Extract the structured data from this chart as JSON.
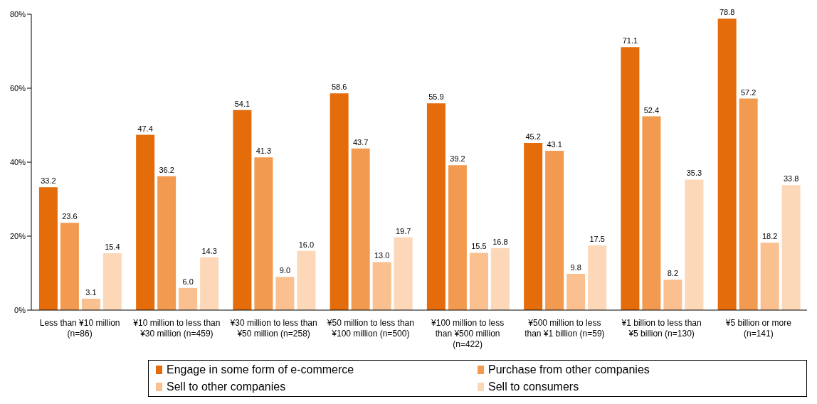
{
  "chart_data": {
    "type": "bar",
    "categories": [
      "Less than ¥10 million (n=86)",
      "¥10 million to less than ¥30 million (n=459)",
      "¥30 million to less than ¥50 million (n=258)",
      "¥50 million to less than ¥100 million (n=500)",
      "¥100 million to less than ¥500 million (n=422)",
      "¥500 million to less than ¥1 billion (n=59)",
      "¥1 billion to less than ¥5 billion (n=130)",
      "¥5 billion or more (n=141)"
    ],
    "series": [
      {
        "name": "Engage in some form of e-commerce",
        "color": "#e46c0a",
        "values": [
          33.2,
          47.4,
          54.1,
          58.6,
          55.9,
          45.2,
          71.1,
          78.8
        ],
        "value_labels": [
          "33.2",
          "47.4",
          "54.1",
          "58.6",
          "55.9",
          "45.2",
          "71.1",
          "78.8"
        ]
      },
      {
        "name": "Purchase from other companies",
        "color": "#f29a4f",
        "values": [
          23.6,
          36.2,
          41.3,
          43.7,
          39.2,
          43.1,
          52.4,
          57.2
        ],
        "value_labels": [
          "23.6",
          "36.2",
          "41.3",
          "43.7",
          "39.2",
          "43.1",
          "52.4",
          "57.2"
        ]
      },
      {
        "name": "Sell to other companies",
        "color": "#fac090",
        "values": [
          3.1,
          6.0,
          9.0,
          13.0,
          15.5,
          9.8,
          8.2,
          18.2
        ],
        "value_labels": [
          "3.1",
          "6.0",
          "9.0",
          "13.0",
          "15.5",
          "9.8",
          "8.2",
          "18.2"
        ]
      },
      {
        "name": "Sell to consumers",
        "color": "#fcd8b8",
        "values": [
          15.4,
          14.3,
          16.0,
          19.7,
          16.8,
          17.5,
          35.3,
          33.8
        ],
        "value_labels": [
          "15.4",
          "14.3",
          "16.0",
          "19.7",
          "16.8",
          "17.5",
          "35.3",
          "33.8"
        ]
      }
    ],
    "ylim": [
      0,
      80
    ],
    "yticks": [
      {
        "value": 0,
        "label": "0%"
      },
      {
        "value": 20,
        "label": "20%"
      },
      {
        "value": 40,
        "label": "40%"
      },
      {
        "value": 60,
        "label": "60%"
      },
      {
        "value": 80,
        "label": "80%"
      }
    ],
    "grid": false,
    "legend": "bottom"
  }
}
